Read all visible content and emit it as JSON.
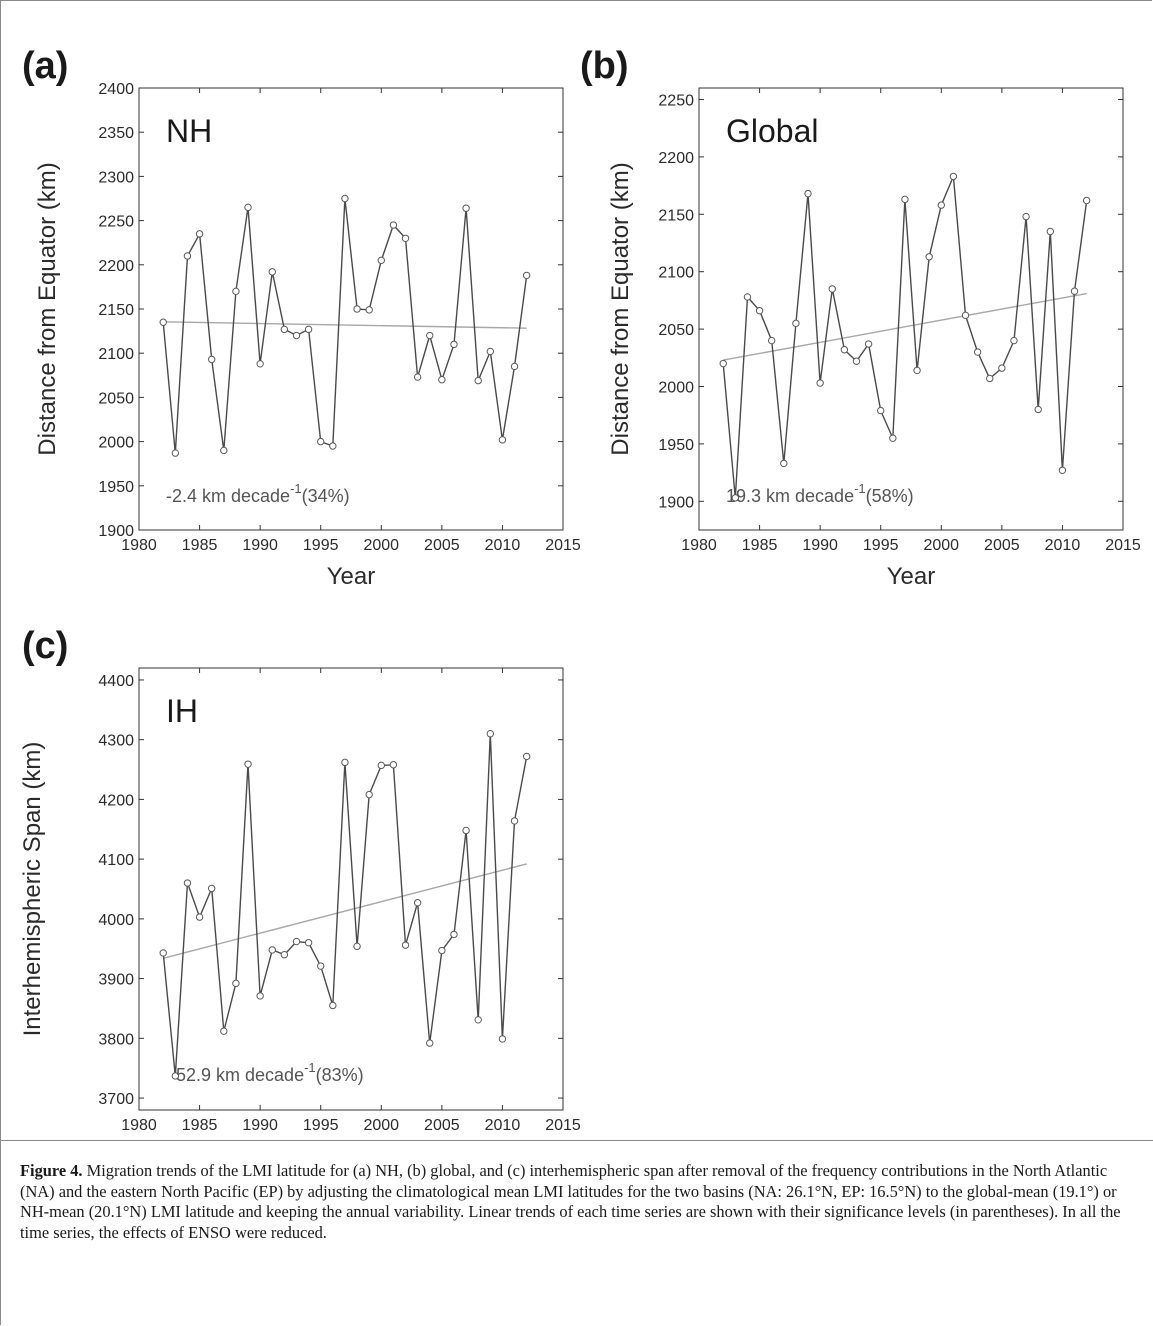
{
  "caption": {
    "label": "Figure 4.",
    "text": "Migration trends of the LMI latitude for (a) NH, (b) global, and (c) interhemispheric span after removal of the frequency contributions in the North Atlantic (NA) and the eastern North Pacific (EP) by adjusting the climatological mean LMI latitudes for the two basins (NA: 26.1°N, EP: 16.5°N) to the global-mean (19.1°) or NH-mean (20.1°N) LMI latitude and keeping the annual variability. Linear trends of each time series are shown with their significance levels (in parentheses). In all the time series, the effects of ENSO were reduced."
  },
  "colors": {
    "series_line": "#4a4a4a",
    "trend_line": "#a8a8a8",
    "marker_fill": "#ffffff",
    "marker_stroke": "#5a5a5a",
    "axis": "#333333"
  },
  "chart_data": [
    {
      "type": "line",
      "panel_label": "(a)",
      "region_label": "NH",
      "xlabel": "Year",
      "ylabel": "Distance from Equator (km)",
      "xlim": [
        1980,
        2015
      ],
      "ylim": [
        1900,
        2400
      ],
      "xticks": [
        1980,
        1985,
        1990,
        1995,
        2000,
        2005,
        2010,
        2015
      ],
      "yticks": [
        1900,
        1950,
        2000,
        2050,
        2100,
        2150,
        2200,
        2250,
        2300,
        2350,
        2400
      ],
      "x": [
        1982,
        1983,
        1984,
        1985,
        1986,
        1987,
        1988,
        1989,
        1990,
        1991,
        1992,
        1993,
        1994,
        1995,
        1996,
        1997,
        1998,
        1999,
        2000,
        2001,
        2002,
        2003,
        2004,
        2005,
        2006,
        2007,
        2008,
        2009,
        2010,
        2011,
        2012
      ],
      "values": [
        2135,
        1987,
        2210,
        2235,
        2093,
        1990,
        2170,
        2265,
        2088,
        2192,
        2127,
        2120,
        2127,
        2000,
        1995,
        2275,
        2150,
        2149,
        2205,
        2245,
        2230,
        2073,
        2120,
        2070,
        2110,
        2264,
        2069,
        2102,
        2002,
        2085,
        2188
      ],
      "trend": {
        "x": [
          1982,
          2012
        ],
        "y": [
          2135.5,
          2128.3
        ]
      },
      "annotation": {
        "value": "-2.4 km decade",
        "superscript": "-1",
        "significance": "(34%)"
      }
    },
    {
      "type": "line",
      "panel_label": "(b)",
      "region_label": "Global",
      "xlabel": "Year",
      "ylabel": "Distance from Equator (km)",
      "xlim": [
        1980,
        2015
      ],
      "ylim": [
        1875,
        2260
      ],
      "xticks": [
        1980,
        1985,
        1990,
        1995,
        2000,
        2005,
        2010,
        2015
      ],
      "yticks": [
        1900,
        1950,
        2000,
        2050,
        2100,
        2150,
        2200,
        2250
      ],
      "x": [
        1982,
        1983,
        1984,
        1985,
        1986,
        1987,
        1988,
        1989,
        1990,
        1991,
        1992,
        1993,
        1994,
        1995,
        1996,
        1997,
        1998,
        1999,
        2000,
        2001,
        2002,
        2003,
        2004,
        2005,
        2006,
        2007,
        2008,
        2009,
        2010,
        2011,
        2012
      ],
      "values": [
        2020,
        1903,
        2078,
        2066,
        2040,
        1933,
        2055,
        2168,
        2003,
        2085,
        2032,
        2022,
        2037,
        1979,
        1955,
        2163,
        2014,
        2113,
        2158,
        2183,
        2062,
        2030,
        2007,
        2016,
        2040,
        2148,
        1980,
        2135,
        1927,
        2083,
        2162
      ],
      "trend": {
        "x": [
          1982,
          2012
        ],
        "y": [
          2023,
          2081
        ]
      },
      "annotation": {
        "value": "19.3 km decade",
        "superscript": "-1",
        "significance": "(58%)"
      }
    },
    {
      "type": "line",
      "panel_label": "(c)",
      "region_label": "IH",
      "xlabel": "Year",
      "ylabel": "Interhemispheric Span (km)",
      "xlim": [
        1980,
        2015
      ],
      "ylim": [
        3680,
        4420
      ],
      "xticks": [
        1980,
        1985,
        1990,
        1995,
        2000,
        2005,
        2010,
        2015
      ],
      "yticks": [
        3700,
        3800,
        3900,
        4000,
        4100,
        4200,
        4300,
        4400
      ],
      "x": [
        1982,
        1983,
        1984,
        1985,
        1986,
        1987,
        1988,
        1989,
        1990,
        1991,
        1992,
        1993,
        1994,
        1995,
        1996,
        1997,
        1998,
        1999,
        2000,
        2001,
        2002,
        2003,
        2004,
        2005,
        2006,
        2007,
        2008,
        2009,
        2010,
        2011,
        2012
      ],
      "values": [
        3943,
        3737,
        4060,
        4003,
        4051,
        3812,
        3892,
        4259,
        3871,
        3948,
        3940,
        3962,
        3960,
        3921,
        3855,
        4262,
        3954,
        4208,
        4257,
        4258,
        3956,
        4027,
        3792,
        3947,
        3974,
        4148,
        3831,
        4310,
        3799,
        4164,
        4272
      ],
      "trend": {
        "x": [
          1982,
          2012
        ],
        "y": [
          3934,
          4092
        ]
      },
      "annotation": {
        "value": "52.9 km decade",
        "superscript": "-1",
        "significance": "(83%)"
      }
    }
  ]
}
